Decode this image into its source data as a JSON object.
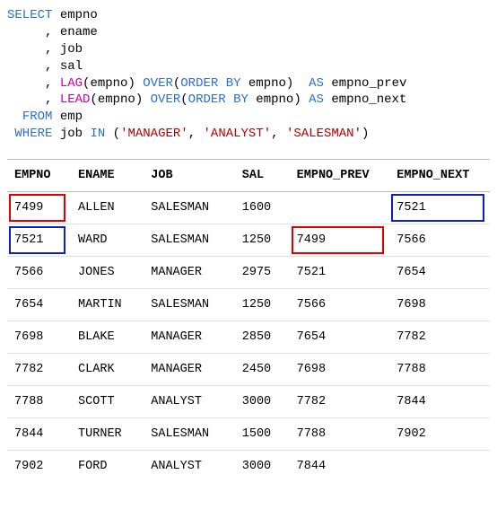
{
  "code": {
    "select_kw": "SELECT",
    "cols": [
      "empno",
      "ename",
      "job",
      "sal"
    ],
    "lag_fn": "LAG",
    "lead_fn": "LEAD",
    "over_kw": "OVER",
    "order_by_kw": "ORDER BY",
    "as_kw": "AS",
    "lag_arg": "empno",
    "lag_order": "empno",
    "lag_alias": "empno_prev",
    "lead_arg": "empno",
    "lead_order": "empno",
    "lead_alias": "empno_next",
    "from_kw": "FROM",
    "from_table": "emp",
    "where_kw": "WHERE",
    "where_col": "job",
    "in_kw": "IN",
    "in_values": [
      "'MANAGER'",
      "'ANALYST'",
      "'SALESMAN'"
    ]
  },
  "table": {
    "columns": [
      "EMPNO",
      "ENAME",
      "JOB",
      "SAL",
      "EMPNO_PREV",
      "EMPNO_NEXT"
    ],
    "rows": [
      [
        "7499",
        "ALLEN",
        "SALESMAN",
        "1600",
        "",
        "7521"
      ],
      [
        "7521",
        "WARD",
        "SALESMAN",
        "1250",
        "7499",
        "7566"
      ],
      [
        "7566",
        "JONES",
        "MANAGER",
        "2975",
        "7521",
        "7654"
      ],
      [
        "7654",
        "MARTIN",
        "SALESMAN",
        "1250",
        "7566",
        "7698"
      ],
      [
        "7698",
        "BLAKE",
        "MANAGER",
        "2850",
        "7654",
        "7782"
      ],
      [
        "7782",
        "CLARK",
        "MANAGER",
        "2450",
        "7698",
        "7788"
      ],
      [
        "7788",
        "SCOTT",
        "ANALYST",
        "3000",
        "7782",
        "7844"
      ],
      [
        "7844",
        "TURNER",
        "SALESMAN",
        "1500",
        "7788",
        "7902"
      ],
      [
        "7902",
        "FORD",
        "ANALYST",
        "3000",
        "7844",
        ""
      ]
    ],
    "col_classes": [
      "col-empno",
      "col-ename",
      "col-job",
      "col-sal",
      "col-prev",
      "col-next"
    ],
    "highlights": [
      {
        "row": 0,
        "col": 0,
        "color": "red"
      },
      {
        "row": 1,
        "col": 0,
        "color": "blue"
      },
      {
        "row": 1,
        "col": 4,
        "color": "red"
      },
      {
        "row": 0,
        "col": 5,
        "color": "blue"
      }
    ],
    "header_border_color": "#b8b8b8",
    "row_border_color": "#e2e2e2",
    "red_border": "#e00000",
    "blue_border": "#1020c0"
  }
}
